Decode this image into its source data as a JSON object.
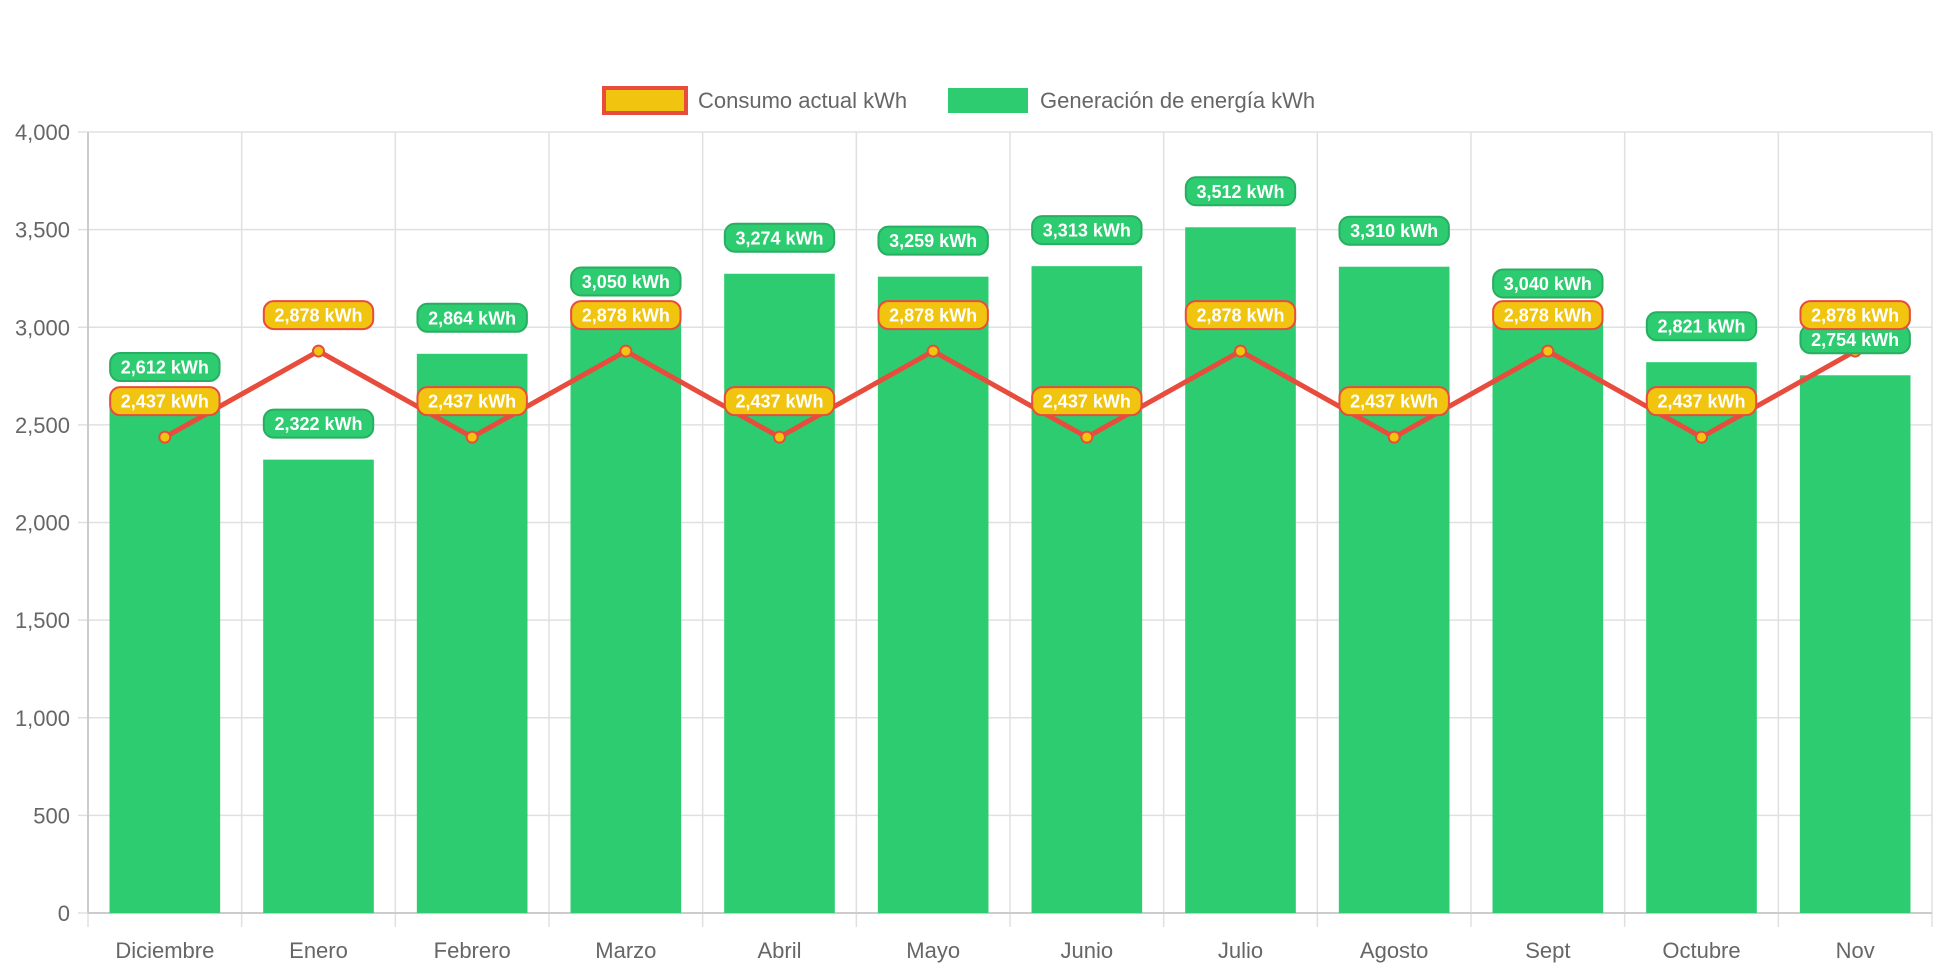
{
  "chart_data": {
    "type": "bar",
    "categories": [
      "Diciembre",
      "Enero",
      "Febrero",
      "Marzo",
      "Abril",
      "Mayo",
      "Junio",
      "Julio",
      "Agosto",
      "Sept",
      "Octubre",
      "Nov"
    ],
    "series": [
      {
        "name": "Generación de energía kWh",
        "type": "bar",
        "color": "#2ecc71",
        "values": [
          2612,
          2322,
          2864,
          3050,
          3274,
          3259,
          3313,
          3512,
          3310,
          3040,
          2821,
          2754
        ],
        "labels": [
          "2,612 kWh",
          "2,322 kWh",
          "2,864 kWh",
          "3,050 kWh",
          "3,274 kWh",
          "3,259 kWh",
          "3,313 kWh",
          "3,512 kWh",
          "3,310 kWh",
          "3,040 kWh",
          "2,821 kWh",
          "2,754 kWh"
        ]
      },
      {
        "name": "Consumo actual kWh",
        "type": "line",
        "color": "#e74c3c",
        "point_color": "#f1c40f",
        "values": [
          2437,
          2878,
          2437,
          2878,
          2437,
          2878,
          2437,
          2878,
          2437,
          2878,
          2437,
          2878
        ],
        "labels": [
          "2,437 kWh",
          "2,878 kWh",
          "2,437 kWh",
          "2,878 kWh",
          "2,437 kWh",
          "2,878 kWh",
          "2,437 kWh",
          "2,878 kWh",
          "2,437 kWh",
          "2,878 kWh",
          "2,437 kWh",
          "2,878 kWh"
        ]
      }
    ],
    "legend": [
      "Consumo actual kWh",
      "Generación de energía kWh"
    ],
    "legend_position": "top",
    "ylim": [
      0,
      4000
    ],
    "yticks": [
      "0",
      "500",
      "1,000",
      "1,500",
      "2,000",
      "2,500",
      "3,000",
      "3,500",
      "4,000"
    ],
    "ytick_values": [
      0,
      500,
      1000,
      1500,
      2000,
      2500,
      3000,
      3500,
      4000
    ],
    "grid": true,
    "title": "",
    "xlabel": "",
    "ylabel": ""
  }
}
